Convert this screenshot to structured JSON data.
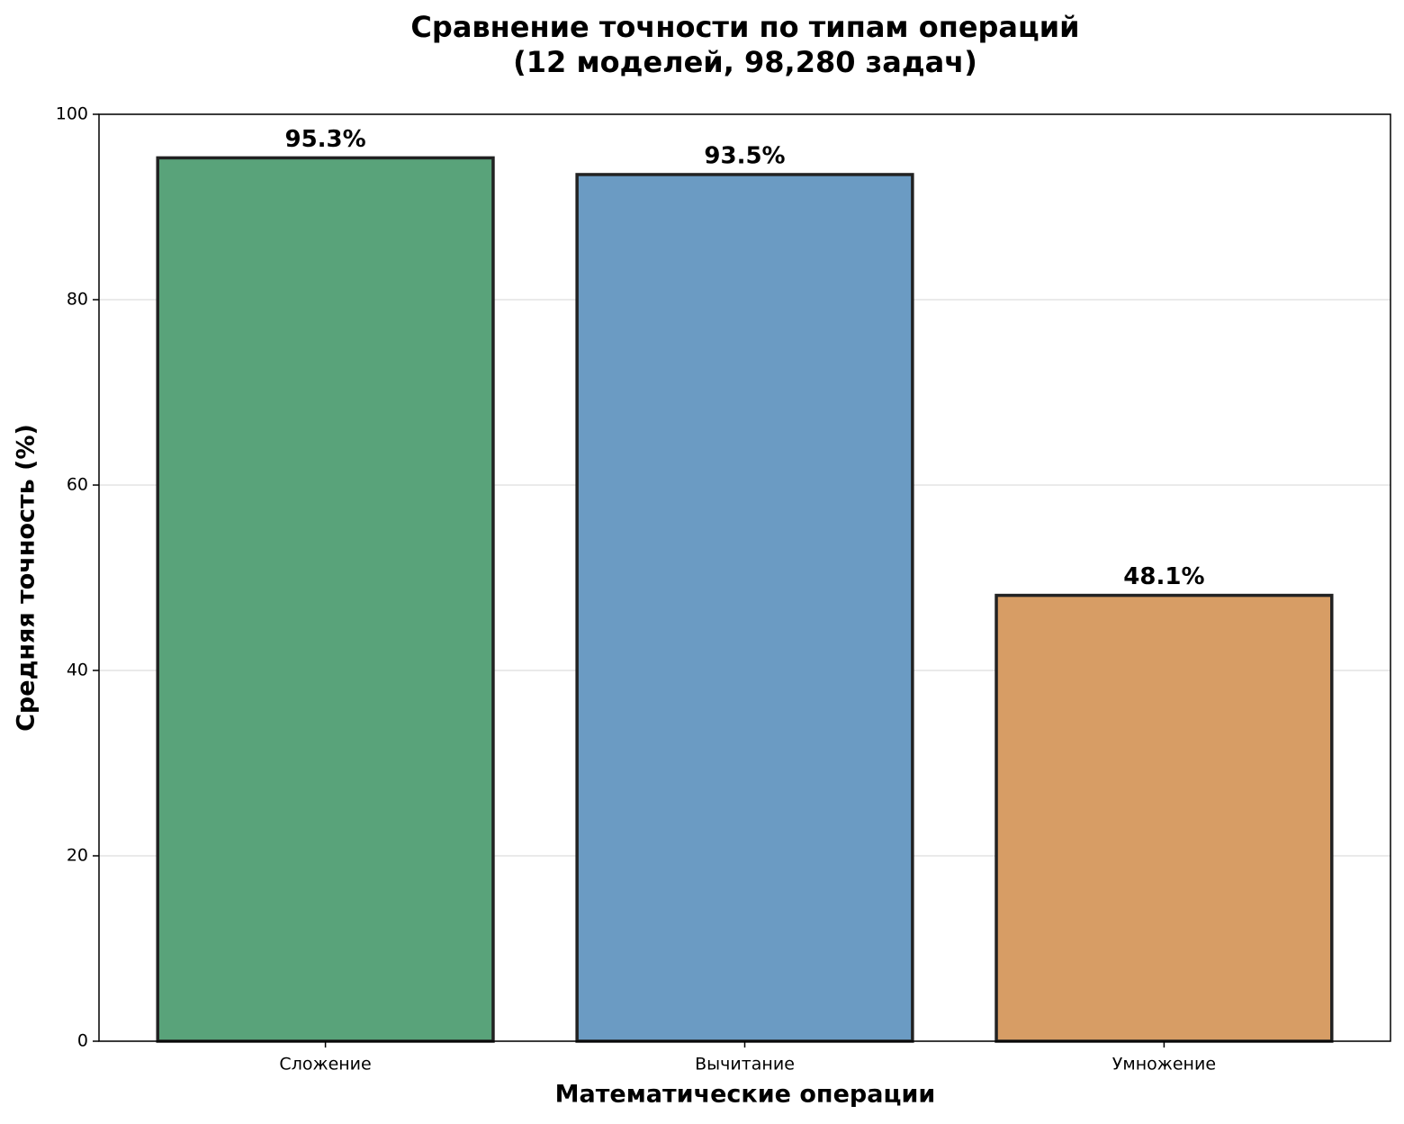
{
  "chart_data": {
    "type": "bar",
    "title": "Сравнение точности по типам операций",
    "subtitle": "(12 моделей, 98,280 задач)",
    "x_label": "Математические операции",
    "y_label": "Средняя точность (%)",
    "categories": [
      "Сложение",
      "Вычитание",
      "Умножение"
    ],
    "values": [
      95.3,
      93.5,
      48.1
    ],
    "value_labels": [
      "95.3%",
      "93.5%",
      "48.1%"
    ],
    "colors": [
      "#59a37a",
      "#6b9bc3",
      "#d79d65"
    ],
    "ylim": [
      0,
      100
    ],
    "yticks": [
      0,
      20,
      40,
      60,
      80,
      100
    ],
    "grid": true
  }
}
